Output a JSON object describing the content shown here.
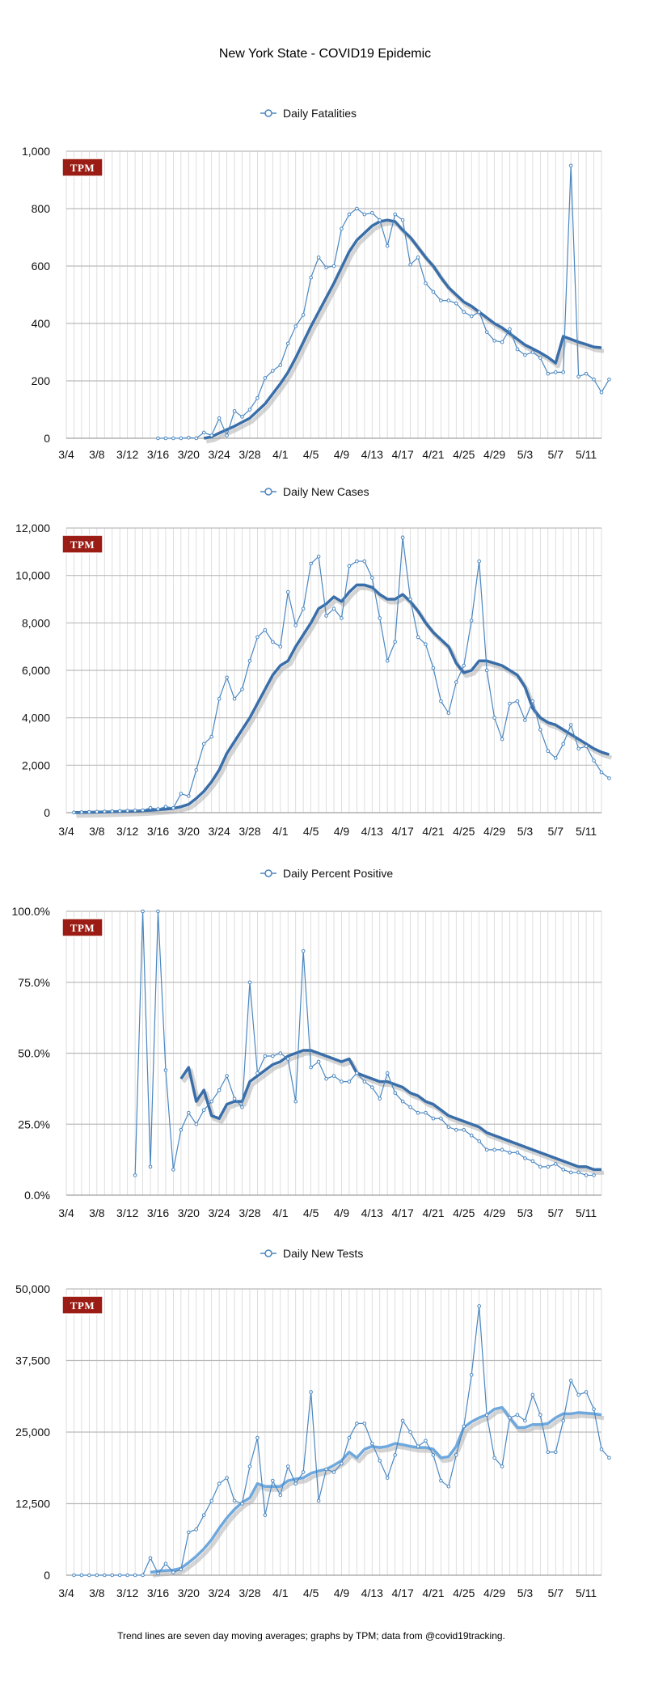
{
  "title": "New York State - COVID19 Epidemic",
  "footnote": "Trend lines are seven day moving averages; graphs by TPM; data from @covid19tracking.",
  "badge": "TPM",
  "colors": {
    "raw": "#4a86c0",
    "trend": "#3a6ea8",
    "trend_light": "#6fa8dc",
    "shadow": "#aaaaaa",
    "grid": "#c8c8c8",
    "badge": "#9b1c14"
  },
  "chart_data": [
    {
      "type": "line",
      "title": "Daily Fatalities",
      "legend": "Daily Fatalities",
      "x_ticks": [
        "3/4",
        "3/8",
        "3/12",
        "3/16",
        "3/20",
        "3/24",
        "3/28",
        "4/1",
        "4/5",
        "4/9",
        "4/13",
        "4/17",
        "4/21",
        "4/25",
        "4/29",
        "5/3",
        "5/7",
        "5/11"
      ],
      "y_ticks": [
        "0",
        "200",
        "400",
        "600",
        "800",
        "1,000"
      ],
      "ylim": [
        0,
        1000
      ],
      "x_start": "3/4",
      "series": [
        {
          "name": "Daily Fatalities",
          "start_index": 12,
          "values": [
            0,
            0,
            0,
            0,
            2,
            0,
            20,
            10,
            70,
            10,
            95,
            75,
            100,
            140,
            210,
            235,
            255,
            330,
            390,
            430,
            560,
            630,
            595,
            600,
            730,
            780,
            800,
            780,
            785,
            760,
            670,
            780,
            760,
            605,
            630,
            540,
            510,
            480,
            480,
            470,
            440,
            425,
            440,
            370,
            340,
            335,
            380,
            310,
            290,
            300,
            280,
            225,
            230,
            230,
            950,
            215,
            225,
            205,
            160,
            205
          ]
        },
        {
          "name": "7-day average",
          "start_index": 18,
          "values": [
            0,
            5,
            18,
            30,
            42,
            56,
            70,
            95,
            120,
            155,
            190,
            230,
            280,
            335,
            390,
            440,
            490,
            540,
            595,
            650,
            690,
            715,
            740,
            755,
            760,
            755,
            725,
            700,
            665,
            630,
            600,
            560,
            525,
            500,
            475,
            460,
            440,
            420,
            400,
            385,
            365,
            345,
            325,
            312,
            298,
            282,
            262,
            355,
            345,
            335,
            327,
            318,
            315
          ]
        }
      ]
    },
    {
      "type": "line",
      "title": "Daily New Cases",
      "legend": "Daily New Cases",
      "x_ticks": [
        "3/4",
        "3/8",
        "3/12",
        "3/16",
        "3/20",
        "3/24",
        "3/28",
        "4/1",
        "4/5",
        "4/9",
        "4/13",
        "4/17",
        "4/21",
        "4/25",
        "4/29",
        "5/3",
        "5/7",
        "5/11"
      ],
      "y_ticks": [
        "0",
        "2,000",
        "4,000",
        "6,000",
        "8,000",
        "10,000",
        "12,000"
      ],
      "ylim": [
        0,
        12000
      ],
      "x_start": "3/4",
      "series": [
        {
          "name": "Daily New Cases",
          "start_index": 1,
          "values": [
            10,
            20,
            30,
            40,
            50,
            60,
            70,
            80,
            90,
            100,
            200,
            150,
            250,
            200,
            800,
            700,
            1800,
            2900,
            3200,
            4800,
            5700,
            4800,
            5200,
            6400,
            7400,
            7700,
            7200,
            7000,
            9300,
            7900,
            8600,
            10500,
            10800,
            8300,
            8600,
            8200,
            10400,
            10600,
            10600,
            9900,
            8200,
            6400,
            7200,
            11600,
            9000,
            7400,
            7100,
            6100,
            4700,
            4200,
            5500,
            6200,
            8100,
            10600,
            6000,
            4000,
            3100,
            4600,
            4700,
            3900,
            4700,
            3500,
            2600,
            2300,
            2900,
            3700,
            2700,
            2800,
            2200,
            1700,
            1450
          ]
        },
        {
          "name": "7-day average",
          "start_index": 1,
          "values": [
            5,
            10,
            15,
            20,
            30,
            40,
            50,
            60,
            70,
            80,
            100,
            120,
            150,
            180,
            250,
            350,
            600,
            900,
            1300,
            1800,
            2500,
            3000,
            3500,
            4000,
            4600,
            5200,
            5800,
            6200,
            6400,
            7000,
            7500,
            8000,
            8600,
            8800,
            9100,
            8900,
            9300,
            9600,
            9600,
            9500,
            9200,
            9000,
            9000,
            9200,
            8900,
            8500,
            8000,
            7600,
            7300,
            7000,
            6300,
            5900,
            6000,
            6400,
            6400,
            6300,
            6200,
            6000,
            5800,
            5300,
            4400,
            4000,
            3800,
            3700,
            3500,
            3300,
            3100,
            2900,
            2700,
            2550,
            2450
          ]
        }
      ]
    },
    {
      "type": "line",
      "title": "Daily Percent Positive",
      "legend": "Daily Percent Positive",
      "x_ticks": [
        "3/4",
        "3/8",
        "3/12",
        "3/16",
        "3/20",
        "3/24",
        "3/28",
        "4/1",
        "4/5",
        "4/9",
        "4/13",
        "4/17",
        "4/21",
        "4/25",
        "4/29",
        "5/3",
        "5/7",
        "5/11"
      ],
      "y_ticks": [
        "0.0%",
        "25.0%",
        "50.0%",
        "75.0%",
        "100.0%"
      ],
      "ylim": [
        0,
        100
      ],
      "x_start": "3/4",
      "series": [
        {
          "name": "Daily Percent Positive",
          "start_index": 9,
          "values": [
            7,
            100,
            10,
            100,
            44,
            9,
            23,
            29,
            25,
            30,
            33,
            37,
            42,
            34,
            31,
            75,
            43,
            49,
            49,
            50,
            48,
            33,
            86,
            45,
            47,
            41,
            42,
            40,
            40,
            43,
            40,
            38,
            34,
            43,
            36,
            33,
            31,
            29,
            29,
            27,
            27,
            24,
            23,
            23,
            21,
            19,
            16,
            16,
            16,
            15,
            15,
            13,
            12,
            10,
            10,
            11,
            9,
            8,
            8,
            7,
            7
          ]
        },
        {
          "name": "7-day average",
          "start_index": 15,
          "values": [
            41,
            45,
            33,
            37,
            28,
            27,
            32,
            33,
            33,
            40,
            42,
            44,
            46,
            47,
            49,
            50,
            51,
            51,
            50,
            49,
            48,
            47,
            48,
            43,
            42,
            41,
            40,
            40,
            39,
            38,
            36,
            35,
            33,
            32,
            30,
            28,
            27,
            26,
            25,
            24,
            22,
            21,
            20,
            19,
            18,
            17,
            16,
            15,
            14,
            13,
            12,
            11,
            10,
            10,
            9,
            9
          ]
        }
      ]
    },
    {
      "type": "line",
      "title": "Daily New Tests",
      "legend": "Daily New Tests",
      "x_ticks": [
        "3/4",
        "3/8",
        "3/12",
        "3/16",
        "3/20",
        "3/24",
        "3/28",
        "4/1",
        "4/5",
        "4/9",
        "4/13",
        "4/17",
        "4/21",
        "4/25",
        "4/29",
        "5/3",
        "5/7",
        "5/11"
      ],
      "y_ticks": [
        "0",
        "12,500",
        "25,000",
        "37,500",
        "50,000"
      ],
      "ylim": [
        0,
        50000
      ],
      "x_start": "3/4",
      "series": [
        {
          "name": "Daily New Tests",
          "start_index": 1,
          "values": [
            0,
            0,
            0,
            0,
            0,
            0,
            0,
            0,
            0,
            0,
            3000,
            300,
            2000,
            500,
            1000,
            7500,
            8000,
            10500,
            13000,
            16000,
            17000,
            13000,
            12500,
            19000,
            24000,
            10500,
            16500,
            14000,
            19000,
            16000,
            18000,
            32000,
            13000,
            18500,
            18000,
            19500,
            24000,
            26500,
            26500,
            23000,
            20000,
            17000,
            21000,
            27000,
            25000,
            22500,
            23500,
            21000,
            16500,
            15500,
            21000,
            26000,
            35000,
            47000,
            28000,
            20500,
            19000,
            27500,
            28000,
            27000,
            31500,
            28000,
            21500,
            21500,
            27000,
            34000,
            31500,
            32000,
            29000,
            22000,
            20500
          ]
        },
        {
          "name": "7-day average",
          "start_index": 11,
          "values": [
            500,
            700,
            800,
            900,
            1200,
            2200,
            3300,
            4600,
            6200,
            8200,
            10000,
            11500,
            12700,
            13500,
            16000,
            15500,
            15500,
            15500,
            16500,
            16800,
            17000,
            17800,
            18200,
            18500,
            19200,
            20000,
            21500,
            20500,
            22000,
            22500,
            22300,
            22500,
            23000,
            22800,
            22500,
            22300,
            22300,
            22000,
            20500,
            20700,
            22500,
            25800,
            26800,
            27500,
            28000,
            29000,
            29300,
            27500,
            25800,
            25800,
            26300,
            26300,
            26500,
            27500,
            28200,
            28200,
            28400,
            28300,
            28200,
            28000
          ]
        }
      ]
    }
  ]
}
